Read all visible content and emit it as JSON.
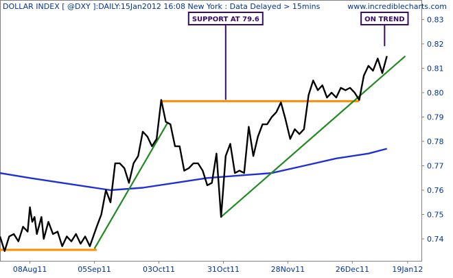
{
  "header": {
    "title": "DOLLAR INDEX [ @DXY ]:DAILY:15Jan2012 16:08 New York  : Data Delayed > 15mins",
    "site": "www.incrediblecharts.com"
  },
  "colors": {
    "background": "#ffffff",
    "frame": "#808080",
    "price_line": "#000000",
    "moving_average": "#1f2fd6",
    "trendline": "#1f8a1f",
    "support": "#ff8c00",
    "annotation_border": "#3a0a6b",
    "text": "#003399"
  },
  "annotations": [
    {
      "label": "SUPPORT AT 79.6",
      "target_date": "2011-11-01",
      "target_value": 0.7965
    },
    {
      "label": "ON TREND",
      "target_date": "2012-01-09",
      "target_value": 0.8185
    }
  ],
  "chart_data": {
    "type": "line",
    "title": "DOLLAR INDEX [ @DXY ]:DAILY:15Jan2012 16:08 New York  : Data Delayed > 15mins",
    "xlabel": "",
    "ylabel": "",
    "x_axis": {
      "range": [
        "2011-07-26",
        "2012-01-25"
      ],
      "ticks": [
        {
          "date": "2011-08-08",
          "label": "08Aug11"
        },
        {
          "date": "2011-09-05",
          "label": "05Sep11"
        },
        {
          "date": "2011-10-03",
          "label": "03Oct11"
        },
        {
          "date": "2011-10-31",
          "label": "31Oct11"
        },
        {
          "date": "2011-11-28",
          "label": "28Nov11"
        },
        {
          "date": "2011-12-26",
          "label": "26Dec11"
        },
        {
          "date": "2012-01-19",
          "label": "19Jan12"
        }
      ]
    },
    "y_axis": {
      "range": [
        0.731,
        0.838
      ],
      "position": "right",
      "ticks": [
        0.74,
        0.75,
        0.76,
        0.77,
        0.78,
        0.79,
        0.8,
        0.81,
        0.82,
        0.83
      ]
    },
    "grid": false,
    "legend": "none",
    "series": [
      {
        "kind": "price",
        "points": [
          [
            "2011-07-26",
            0.741
          ],
          [
            "2011-07-28",
            0.735
          ],
          [
            "2011-07-30",
            0.741
          ],
          [
            "2011-08-01",
            0.742
          ],
          [
            "2011-08-03",
            0.739
          ],
          [
            "2011-08-05",
            0.745
          ],
          [
            "2011-08-07",
            0.743
          ],
          [
            "2011-08-08",
            0.753
          ],
          [
            "2011-08-09",
            0.747
          ],
          [
            "2011-08-10",
            0.749
          ],
          [
            "2011-08-11",
            0.742
          ],
          [
            "2011-08-13",
            0.749
          ],
          [
            "2011-08-14",
            0.74
          ],
          [
            "2011-08-16",
            0.747
          ],
          [
            "2011-08-18",
            0.742
          ],
          [
            "2011-08-20",
            0.743
          ],
          [
            "2011-08-22",
            0.737
          ],
          [
            "2011-08-24",
            0.741
          ],
          [
            "2011-08-26",
            0.739
          ],
          [
            "2011-08-28",
            0.742
          ],
          [
            "2011-08-30",
            0.738
          ],
          [
            "2011-09-01",
            0.741
          ],
          [
            "2011-09-03",
            0.737
          ],
          [
            "2011-09-06",
            0.745
          ],
          [
            "2011-09-08",
            0.75
          ],
          [
            "2011-09-10",
            0.76
          ],
          [
            "2011-09-12",
            0.755
          ],
          [
            "2011-09-14",
            0.771
          ],
          [
            "2011-09-16",
            0.771
          ],
          [
            "2011-09-18",
            0.769
          ],
          [
            "2011-09-20",
            0.763
          ],
          [
            "2011-09-22",
            0.771
          ],
          [
            "2011-09-24",
            0.774
          ],
          [
            "2011-09-26",
            0.784
          ],
          [
            "2011-09-28",
            0.782
          ],
          [
            "2011-09-30",
            0.778
          ],
          [
            "2011-10-02",
            0.781
          ],
          [
            "2011-10-04",
            0.797
          ],
          [
            "2011-10-06",
            0.788
          ],
          [
            "2011-10-08",
            0.787
          ],
          [
            "2011-10-10",
            0.778
          ],
          [
            "2011-10-12",
            0.778
          ],
          [
            "2011-10-14",
            0.768
          ],
          [
            "2011-10-16",
            0.769
          ],
          [
            "2011-10-18",
            0.771
          ],
          [
            "2011-10-20",
            0.771
          ],
          [
            "2011-10-22",
            0.768
          ],
          [
            "2011-10-24",
            0.762
          ],
          [
            "2011-10-26",
            0.763
          ],
          [
            "2011-10-28",
            0.775
          ],
          [
            "2011-10-30",
            0.749
          ],
          [
            "2011-11-01",
            0.774
          ],
          [
            "2011-11-03",
            0.779
          ],
          [
            "2011-11-05",
            0.767
          ],
          [
            "2011-11-07",
            0.768
          ],
          [
            "2011-11-09",
            0.767
          ],
          [
            "2011-11-11",
            0.786
          ],
          [
            "2011-11-13",
            0.774
          ],
          [
            "2011-11-15",
            0.782
          ],
          [
            "2011-11-17",
            0.787
          ],
          [
            "2011-11-19",
            0.787
          ],
          [
            "2011-11-21",
            0.79
          ],
          [
            "2011-11-23",
            0.792
          ],
          [
            "2011-11-25",
            0.796
          ],
          [
            "2011-11-27",
            0.789
          ],
          [
            "2011-11-29",
            0.781
          ],
          [
            "2011-12-01",
            0.785
          ],
          [
            "2011-12-03",
            0.783
          ],
          [
            "2011-12-05",
            0.785
          ],
          [
            "2011-12-07",
            0.799
          ],
          [
            "2011-12-09",
            0.805
          ],
          [
            "2011-12-11",
            0.801
          ],
          [
            "2011-12-13",
            0.803
          ],
          [
            "2011-12-15",
            0.798
          ],
          [
            "2011-12-17",
            0.8
          ],
          [
            "2011-12-19",
            0.798
          ],
          [
            "2011-12-21",
            0.802
          ],
          [
            "2011-12-23",
            0.801
          ],
          [
            "2011-12-25",
            0.802
          ],
          [
            "2011-12-27",
            0.8
          ],
          [
            "2011-12-29",
            0.797
          ],
          [
            "2011-12-31",
            0.807
          ],
          [
            "2012-01-02",
            0.811
          ],
          [
            "2012-01-04",
            0.809
          ],
          [
            "2012-01-06",
            0.814
          ],
          [
            "2012-01-08",
            0.808
          ],
          [
            "2012-01-10",
            0.815
          ]
        ]
      },
      {
        "kind": "moving_average",
        "points": [
          [
            "2011-07-26",
            0.767
          ],
          [
            "2011-08-08",
            0.765
          ],
          [
            "2011-08-22",
            0.763
          ],
          [
            "2011-09-05",
            0.761
          ],
          [
            "2011-09-12",
            0.76
          ],
          [
            "2011-09-26",
            0.761
          ],
          [
            "2011-10-10",
            0.763
          ],
          [
            "2011-10-24",
            0.765
          ],
          [
            "2011-11-07",
            0.766
          ],
          [
            "2011-11-21",
            0.767
          ],
          [
            "2011-12-05",
            0.77
          ],
          [
            "2011-12-19",
            0.773
          ],
          [
            "2012-01-02",
            0.775
          ],
          [
            "2012-01-10",
            0.777
          ]
        ]
      },
      {
        "kind": "trendline",
        "points": [
          [
            "2011-09-05",
            0.736
          ],
          [
            "2011-10-07",
            0.788
          ]
        ]
      },
      {
        "kind": "trendline",
        "points": [
          [
            "2011-10-30",
            0.749
          ],
          [
            "2012-01-18",
            0.815
          ]
        ]
      },
      {
        "kind": "support",
        "points": [
          [
            "2011-07-26",
            0.7355
          ],
          [
            "2011-09-06",
            0.7355
          ]
        ]
      },
      {
        "kind": "support",
        "points": [
          [
            "2011-10-04",
            0.7965
          ],
          [
            "2011-12-29",
            0.7965
          ]
        ]
      }
    ]
  }
}
